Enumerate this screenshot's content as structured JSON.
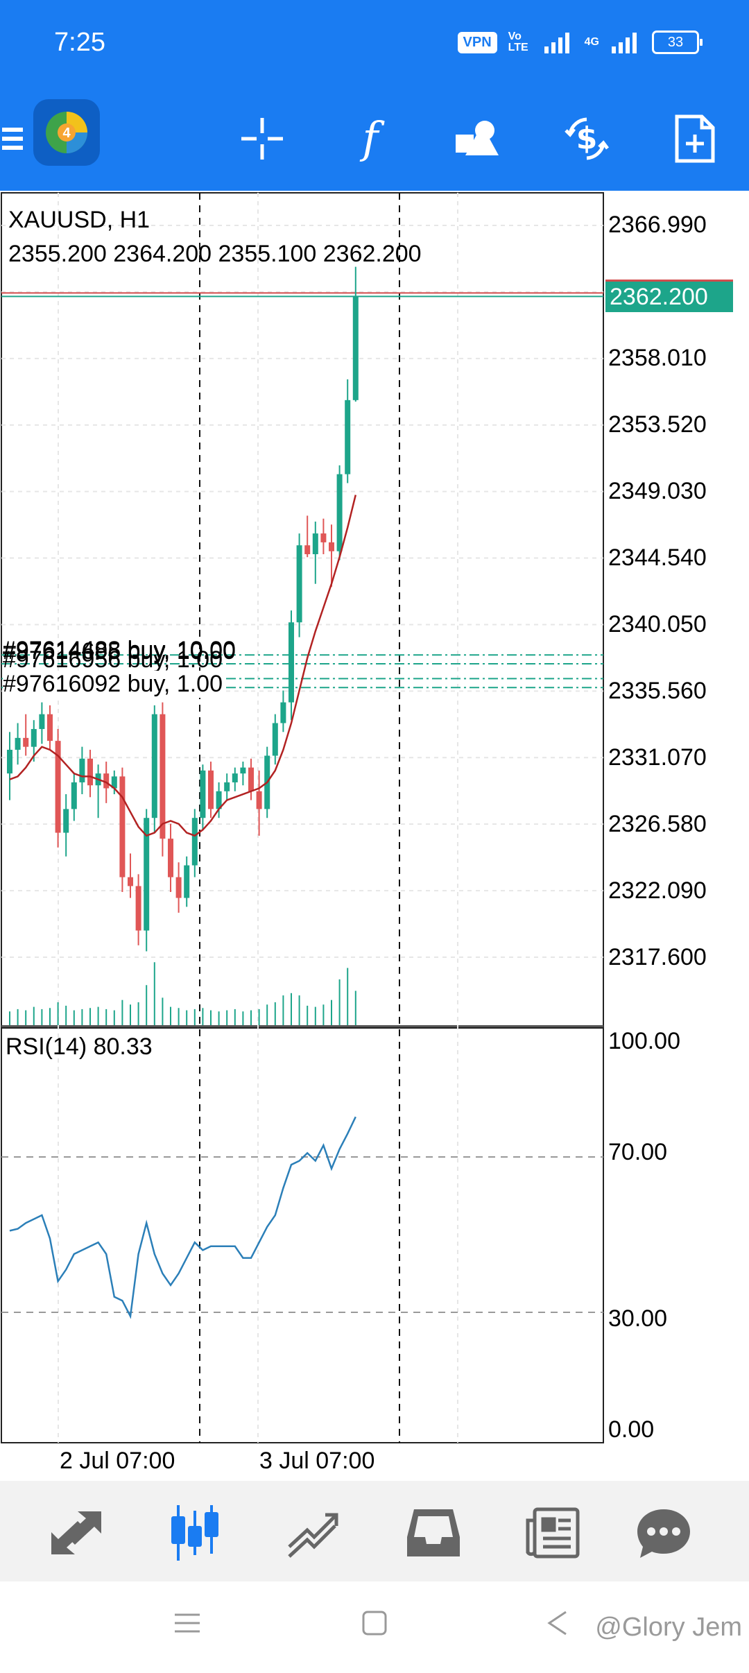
{
  "status_bar": {
    "time": "7:25",
    "vpn": "VPN",
    "volte": "Vo LTE",
    "network": "4G",
    "battery": "33"
  },
  "toolbar": {
    "icons": [
      "menu-icon",
      "app-logo",
      "crosshair-icon",
      "indicators-icon",
      "objects-icon",
      "trade-icon",
      "new-order-icon"
    ]
  },
  "chart": {
    "symbol": "XAUUSD, H1",
    "ohlc": "2355.200 2364.200 2355.100 2362.200",
    "current_price": "2362.200",
    "price_ticks": [
      "2366.990",
      "2358.010",
      "2353.520",
      "2349.030",
      "2344.540",
      "2340.050",
      "2335.560",
      "2331.070",
      "2326.580",
      "2322.090",
      "2317.600"
    ],
    "orders": [
      "#97614488 buy, 10.00",
      "#97616956 buy, 1.00",
      "#97614695 buy, 10.00",
      "#97616092 buy, 1.00"
    ],
    "time_labels": [
      "2 Jul 07:00",
      "3 Jul 07:00"
    ],
    "colors": {
      "bull": "#1da58a",
      "bear": "#e05656",
      "ma": "#b22222",
      "rsi": "#2b7fb8"
    }
  },
  "chart_data": {
    "type": "candlestick",
    "symbol": "XAUUSD",
    "timeframe": "H1",
    "ylim": [
      2315,
      2369
    ],
    "candles": [
      {
        "o": 2330.0,
        "h": 2332.8,
        "l": 2328.2,
        "c": 2331.6
      },
      {
        "o": 2331.6,
        "h": 2333.4,
        "l": 2330.6,
        "c": 2332.4
      },
      {
        "o": 2332.4,
        "h": 2334.0,
        "l": 2331.2,
        "c": 2331.8
      },
      {
        "o": 2331.8,
        "h": 2333.6,
        "l": 2330.8,
        "c": 2333.0
      },
      {
        "o": 2333.0,
        "h": 2334.8,
        "l": 2332.0,
        "c": 2334.0
      },
      {
        "o": 2334.0,
        "h": 2334.6,
        "l": 2331.6,
        "c": 2332.2
      },
      {
        "o": 2332.2,
        "h": 2333.0,
        "l": 2325.0,
        "c": 2326.0
      },
      {
        "o": 2326.0,
        "h": 2328.6,
        "l": 2324.4,
        "c": 2327.6
      },
      {
        "o": 2327.6,
        "h": 2330.0,
        "l": 2326.8,
        "c": 2329.4
      },
      {
        "o": 2329.4,
        "h": 2331.8,
        "l": 2328.6,
        "c": 2331.0
      },
      {
        "o": 2331.0,
        "h": 2331.6,
        "l": 2328.4,
        "c": 2329.2
      },
      {
        "o": 2329.2,
        "h": 2330.6,
        "l": 2327.0,
        "c": 2330.0
      },
      {
        "o": 2330.0,
        "h": 2330.8,
        "l": 2328.0,
        "c": 2329.0
      },
      {
        "o": 2329.0,
        "h": 2330.2,
        "l": 2328.6,
        "c": 2329.8
      },
      {
        "o": 2329.8,
        "h": 2330.4,
        "l": 2322.0,
        "c": 2323.0
      },
      {
        "o": 2323.0,
        "h": 2324.6,
        "l": 2321.6,
        "c": 2322.4
      },
      {
        "o": 2322.4,
        "h": 2323.2,
        "l": 2318.4,
        "c": 2319.4
      },
      {
        "o": 2319.4,
        "h": 2327.6,
        "l": 2318.0,
        "c": 2327.0
      },
      {
        "o": 2327.0,
        "h": 2334.6,
        "l": 2326.0,
        "c": 2334.0
      },
      {
        "o": 2334.0,
        "h": 2334.8,
        "l": 2324.4,
        "c": 2325.6
      },
      {
        "o": 2325.6,
        "h": 2326.6,
        "l": 2322.0,
        "c": 2323.0
      },
      {
        "o": 2323.0,
        "h": 2324.0,
        "l": 2320.6,
        "c": 2321.6
      },
      {
        "o": 2321.6,
        "h": 2324.4,
        "l": 2321.0,
        "c": 2323.8
      },
      {
        "o": 2323.8,
        "h": 2327.6,
        "l": 2323.0,
        "c": 2327.0
      },
      {
        "o": 2327.0,
        "h": 2330.6,
        "l": 2326.2,
        "c": 2330.2
      },
      {
        "o": 2330.2,
        "h": 2330.8,
        "l": 2327.0,
        "c": 2327.6
      },
      {
        "o": 2327.6,
        "h": 2329.4,
        "l": 2327.0,
        "c": 2328.8
      },
      {
        "o": 2328.8,
        "h": 2330.0,
        "l": 2328.2,
        "c": 2329.4
      },
      {
        "o": 2329.4,
        "h": 2330.4,
        "l": 2328.8,
        "c": 2330.0
      },
      {
        "o": 2330.0,
        "h": 2330.8,
        "l": 2329.2,
        "c": 2330.4
      },
      {
        "o": 2330.4,
        "h": 2331.0,
        "l": 2328.2,
        "c": 2328.8
      },
      {
        "o": 2328.8,
        "h": 2330.2,
        "l": 2325.8,
        "c": 2327.6
      },
      {
        "o": 2327.6,
        "h": 2331.8,
        "l": 2327.0,
        "c": 2331.2
      },
      {
        "o": 2331.2,
        "h": 2334.0,
        "l": 2330.6,
        "c": 2333.4
      },
      {
        "o": 2333.4,
        "h": 2335.6,
        "l": 2332.8,
        "c": 2334.8
      },
      {
        "o": 2334.8,
        "h": 2341.0,
        "l": 2333.6,
        "c": 2340.2
      },
      {
        "o": 2340.2,
        "h": 2346.2,
        "l": 2339.2,
        "c": 2345.4
      },
      {
        "o": 2345.4,
        "h": 2347.4,
        "l": 2344.6,
        "c": 2344.8
      },
      {
        "o": 2344.8,
        "h": 2347.0,
        "l": 2342.8,
        "c": 2346.2
      },
      {
        "o": 2346.2,
        "h": 2347.2,
        "l": 2344.8,
        "c": 2345.6
      },
      {
        "o": 2345.6,
        "h": 2346.8,
        "l": 2342.6,
        "c": 2345.0
      },
      {
        "o": 2345.0,
        "h": 2350.8,
        "l": 2344.4,
        "c": 2350.2
      },
      {
        "o": 2350.2,
        "h": 2356.6,
        "l": 2349.6,
        "c": 2355.2
      },
      {
        "o": 2355.2,
        "h": 2364.2,
        "l": 2355.1,
        "c": 2362.2
      }
    ],
    "moving_average": [
      2329.6,
      2329.8,
      2330.4,
      2331.2,
      2331.8,
      2331.6,
      2331.2,
      2330.6,
      2330.0,
      2329.8,
      2329.8,
      2329.6,
      2329.4,
      2329.0,
      2328.4,
      2327.4,
      2326.4,
      2325.8,
      2326.0,
      2326.6,
      2326.8,
      2326.6,
      2326.0,
      2325.8,
      2326.2,
      2326.8,
      2327.6,
      2328.2,
      2328.4,
      2328.6,
      2328.8,
      2329.0,
      2329.4,
      2330.2,
      2331.6,
      2333.4,
      2335.6,
      2337.8,
      2339.6,
      2341.2,
      2342.8,
      2344.6,
      2346.6,
      2348.8
    ],
    "order_levels": [
      2338.0,
      2337.4,
      2336.4,
      2335.8
    ],
    "current_price": 2362.2,
    "volume": [
      12,
      14,
      13,
      16,
      14,
      15,
      20,
      17,
      13,
      14,
      15,
      16,
      14,
      13,
      22,
      18,
      20,
      35,
      55,
      24,
      16,
      15,
      13,
      14,
      15,
      13,
      12,
      13,
      14,
      12,
      13,
      14,
      18,
      20,
      26,
      28,
      26,
      17,
      16,
      18,
      22,
      40,
      50,
      30
    ],
    "rsi": {
      "label": "RSI(14) 80.33",
      "levels": [
        70,
        30
      ],
      "ylim": [
        0,
        100
      ],
      "values": [
        51,
        51.5,
        53,
        54,
        55,
        49,
        38,
        41,
        45,
        46,
        47,
        48,
        45,
        34,
        33,
        29,
        45,
        53,
        45,
        40,
        37,
        40,
        44,
        48,
        46,
        47,
        47,
        47,
        47,
        44,
        44,
        48,
        52,
        55,
        62,
        68,
        69,
        71,
        69,
        73,
        67,
        72,
        76,
        80.33
      ]
    },
    "rsi_ticks": [
      "100.00",
      "70.00",
      "30.00",
      "0.00"
    ]
  },
  "bottom_nav": {
    "items": [
      "quotes-icon",
      "chart-icon",
      "trade-icon",
      "history-icon",
      "news-icon",
      "messages-icon"
    ]
  },
  "watermark": "@Glory Jem"
}
